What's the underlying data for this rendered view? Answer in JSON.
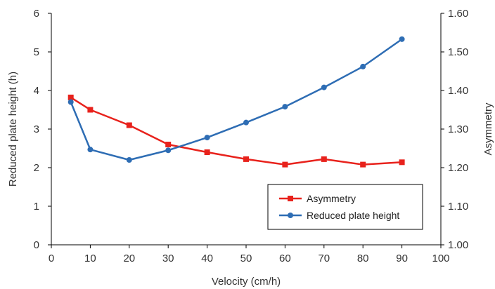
{
  "chart_data": {
    "type": "line",
    "title": "",
    "xlabel": "Velocity (cm/h)",
    "ylabel_left": "Reduced plate height (h)",
    "ylabel_right": "Asymmetry",
    "xlim": [
      0,
      100
    ],
    "x_ticks": [
      0,
      10,
      20,
      30,
      40,
      50,
      60,
      70,
      80,
      90,
      100
    ],
    "ylim_left": [
      0,
      6
    ],
    "y_left_ticks": [
      0,
      1,
      2,
      3,
      4,
      5,
      6
    ],
    "ylim_right": [
      1.0,
      1.6
    ],
    "y_right_ticks": [
      "1.00",
      "1.10",
      "1.20",
      "1.30",
      "1.40",
      "1.50",
      "1.60"
    ],
    "grid": false,
    "legend_position": "bottom-right",
    "series": [
      {
        "name": "Asymmetry",
        "axis": "right",
        "color": "#e8221c",
        "marker": "square",
        "x": [
          5,
          10,
          20,
          30,
          40,
          50,
          60,
          70,
          80,
          90
        ],
        "y": [
          1.382,
          1.35,
          1.31,
          1.26,
          1.24,
          1.222,
          1.208,
          1.222,
          1.208,
          1.214
        ]
      },
      {
        "name": "Reduced plate height",
        "axis": "left",
        "color": "#2e6db4",
        "marker": "circle",
        "x": [
          5,
          10,
          20,
          30,
          40,
          50,
          60,
          70,
          80,
          90
        ],
        "y": [
          3.7,
          2.47,
          2.2,
          2.45,
          2.78,
          3.17,
          3.58,
          4.08,
          4.62,
          5.33
        ]
      }
    ]
  }
}
